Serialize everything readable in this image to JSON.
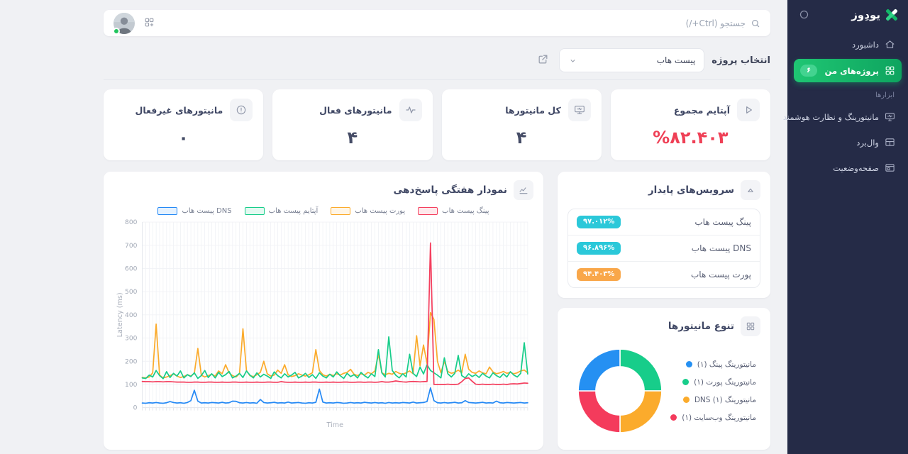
{
  "sidebar": {
    "logo_text": "یودِوز",
    "main_items": [
      {
        "id": "dashboard",
        "label": "داشبورد",
        "icon": "home",
        "active": false
      },
      {
        "id": "my-projects",
        "label": "پروژه‌های من",
        "icon": "grid",
        "active": true,
        "badge": "۶"
      }
    ],
    "tools_label": "ابزارها",
    "tool_items": [
      {
        "id": "smart-monitoring",
        "label": "مانیتورینگ و نظارت هوشمند",
        "icon": "monitor-smart",
        "active": false
      },
      {
        "id": "wallboard",
        "label": "وال‌برد",
        "icon": "wallboard",
        "active": false
      },
      {
        "id": "status-page",
        "label": "صفحه‌وضعیت",
        "icon": "statuspage",
        "active": false
      }
    ]
  },
  "topbar": {
    "search_label": "جستجو (Ctrl+/)"
  },
  "project_bar": {
    "label": "انتخاب پروژه",
    "selected": "پیست هاب"
  },
  "stats": {
    "cards": [
      {
        "id": "total-uptime",
        "title": "آپتایم مجموع",
        "value": "%۸۲.۴۰۳",
        "icon": "play",
        "value_color": "#ef4056"
      },
      {
        "id": "total-monitors",
        "title": "کل مانیتورها",
        "value": "۴",
        "icon": "screen",
        "value_color": "#454c66"
      },
      {
        "id": "active-monitors",
        "title": "مانیتورهای فعال",
        "value": "۴",
        "icon": "pulse",
        "value_color": "#454c66"
      },
      {
        "id": "inactive-monitors",
        "title": "مانیتورهای غیرفعال",
        "value": "۰",
        "icon": "alert",
        "value_color": "#454c66"
      }
    ]
  },
  "services": {
    "title": "سرویس‌های پایدار",
    "items": [
      {
        "label": "پینگ پیست هاب",
        "value": "۹۷.۰۱۲%",
        "color": "#2bc8d9"
      },
      {
        "label": "DNS پیست هاب",
        "value": "۹۶.۸۹۶%",
        "color": "#2bc8d9"
      },
      {
        "label": "پورت پیست هاب",
        "value": "۹۴.۴۰۳%",
        "color": "#f9a74a"
      }
    ]
  },
  "chart_data": [
    {
      "type": "line",
      "title": "نمودار هفتگی پاسخ‌دهی",
      "xlabel": "Time",
      "ylabel": "Latency (ms)",
      "ylim": [
        0,
        800
      ],
      "yticks": [
        0,
        100,
        200,
        300,
        400,
        500,
        600,
        700,
        800
      ],
      "grid": true,
      "legend_position": "top",
      "draw_order": [
        1,
        2,
        3,
        0
      ],
      "series": [
        {
          "name": "پینگ پیست هاب",
          "color": "#f43f5e",
          "values": [
            113,
            112,
            112,
            111,
            112,
            112,
            111,
            112,
            112,
            111,
            110,
            110,
            110,
            109,
            109,
            110,
            110,
            109,
            109,
            110,
            110,
            109,
            109,
            110,
            109,
            109,
            110,
            110,
            109,
            109,
            110,
            109,
            109,
            110,
            109,
            109,
            110,
            110,
            109,
            109,
            112,
            110,
            109,
            109,
            110,
            109,
            109,
            110,
            109,
            110,
            110,
            109,
            109,
            110,
            109,
            110,
            109,
            109,
            110,
            110,
            109,
            109,
            110,
            110,
            109,
            110,
            110,
            109,
            110,
            112,
            110,
            110,
            112,
            115,
            113,
            111,
            110,
            112,
            113,
            112,
            111,
            112,
            113,
            710,
            100,
            100,
            100,
            100,
            101,
            100,
            100,
            101,
            112,
            126,
            128,
            114,
            101,
            100,
            101,
            100,
            100,
            101,
            100,
            100,
            101,
            100,
            102,
            103,
            102,
            104,
            106,
            105
          ]
        },
        {
          "name": "پورت پیست هاب",
          "color": "#fbab2c",
          "values": [
            130,
            128,
            132,
            150,
            360,
            140,
            128,
            132,
            138,
            145,
            136,
            130,
            134,
            142,
            136,
            148,
            255,
            140,
            132,
            138,
            144,
            136,
            158,
            146,
            185,
            150,
            138,
            132,
            146,
            340,
            160,
            138,
            134,
            142,
            152,
            200,
            146,
            136,
            140,
            162,
            148,
            185,
            142,
            134,
            138,
            146,
            140,
            136,
            142,
            150,
            250,
            160,
            142,
            136,
            144,
            138,
            146,
            140,
            148,
            152,
            165,
            144,
            138,
            146,
            140,
            152,
            146,
            158,
            230,
            150,
            142,
            148,
            144,
            156,
            148,
            144,
            150,
            158,
            146,
            310,
            180,
            270,
            190,
            410,
            380,
            200,
            150,
            200,
            156,
            148,
            152,
            162,
            150,
            230,
            166,
            152,
            148,
            158,
            150,
            146,
            175,
            154,
            146,
            150,
            156,
            148,
            152,
            146,
            150,
            158,
            162,
            150
          ]
        },
        {
          "name": "آپتایم پیست هاب",
          "color": "#17cd8a",
          "values": [
            128,
            126,
            140,
            132,
            160,
            138,
            125,
            155,
            130,
            148,
            136,
            158,
            128,
            142,
            134,
            150,
            126,
            138,
            160,
            130,
            146,
            128,
            152,
            134,
            142,
            156,
            128,
            136,
            148,
            130,
            158,
            140,
            128,
            150,
            132,
            144,
            136,
            126,
            154,
            138,
            128,
            146,
            132,
            140,
            152,
            128,
            136,
            148,
            130,
            142,
            126,
            150,
            136,
            128,
            144,
            132,
            154,
            138,
            126,
            148,
            134,
            142,
            128,
            152,
            138,
            128,
            146,
            134,
            250,
            150,
            132,
            305,
            160,
            140,
            128,
            146,
            132,
            230,
            148,
            134,
            175,
            145,
            185,
            160,
            150,
            140,
            128,
            215,
            146,
            132,
            148,
            225,
            138,
            128,
            146,
            134,
            142,
            130,
            148,
            136,
            128,
            150,
            138,
            130,
            146,
            132,
            155,
            140,
            132,
            148,
            280,
            145
          ]
        },
        {
          "name": "DNS پیست هاب",
          "color": "#2589f5",
          "values": [
            20,
            19,
            21,
            20,
            22,
            20,
            19,
            21,
            26,
            22,
            20,
            21,
            19,
            22,
            30,
            75,
            28,
            20,
            21,
            20,
            22,
            21,
            20,
            23,
            20,
            21,
            28,
            27,
            21,
            20,
            22,
            20,
            21,
            19,
            35,
            22,
            20,
            21,
            23,
            20,
            21,
            20,
            24,
            20,
            21,
            22,
            20,
            19,
            21,
            20,
            23,
            80,
            24,
            20,
            21,
            20,
            22,
            21,
            19,
            20,
            22,
            20,
            21,
            20,
            23,
            21,
            20,
            22,
            20,
            21,
            19,
            22,
            20,
            21,
            20,
            22,
            21,
            20,
            24,
            20,
            21,
            22,
            26,
            85,
            30,
            21,
            20,
            22,
            20,
            21,
            23,
            20,
            21,
            30,
            22,
            21,
            20,
            21,
            23,
            20,
            21,
            20,
            28,
            21,
            20,
            22,
            21,
            20,
            21,
            22,
            20,
            21
          ]
        }
      ]
    },
    {
      "type": "pie",
      "variant": "donut",
      "title": "تنوع مانیتورها",
      "labels": [
        "مانیتورینگ پینگ (۱)",
        "مانیتورینگ پورت (۱)",
        "مانیتورینگ DNS (۱)",
        "مانیتورینگ وب‌سایت (۱)"
      ],
      "values": [
        1,
        1,
        1,
        1
      ],
      "colors": [
        "#2590f2",
        "#17cd8a",
        "#fbab2c",
        "#f43b5c"
      ],
      "slice_order_clockwise_from_top": [
        1,
        2,
        3,
        0
      ]
    }
  ]
}
